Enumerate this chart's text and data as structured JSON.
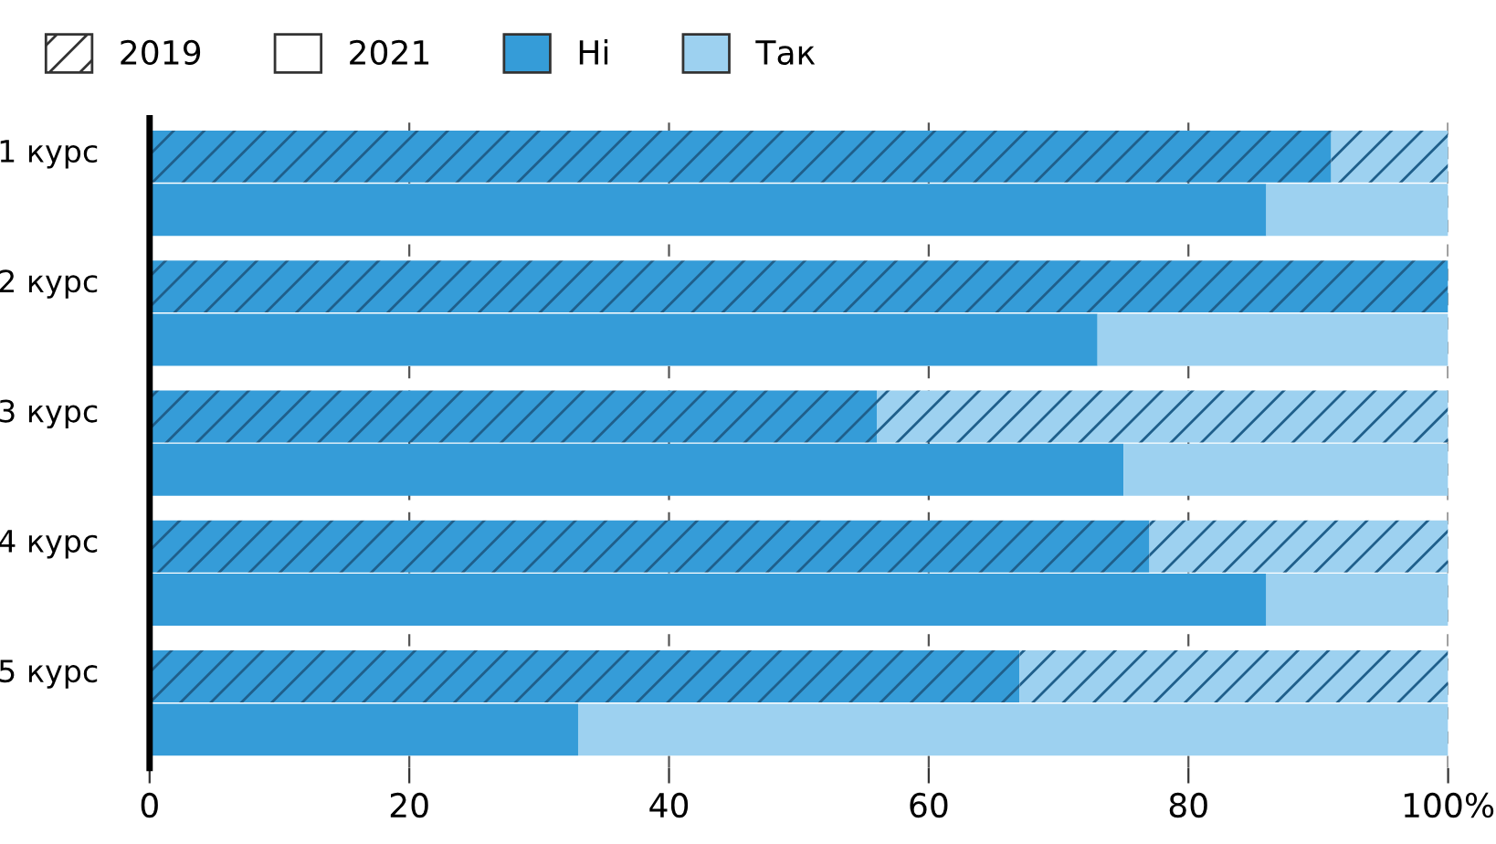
{
  "chart_data": {
    "type": "bar",
    "orientation": "horizontal",
    "stacked": true,
    "categories": [
      "1 курс",
      null,
      "2 курс",
      null,
      "3 курс",
      null,
      "4 курс",
      null,
      "5 курс",
      null
    ],
    "series": [
      {
        "name": "Ні",
        "color": "#359cd8",
        "values": [
          91,
          86,
          100,
          73,
          56,
          75,
          77,
          86,
          67,
          33
        ]
      },
      {
        "name": "Так",
        "color": "#9dd1f0",
        "values": [
          9,
          14,
          0,
          27,
          44,
          25,
          23,
          14,
          33,
          67
        ]
      }
    ],
    "annotations": [
      "2019",
      "2021"
    ],
    "xlim": [
      0,
      100
    ],
    "xticks": [
      0,
      20,
      40,
      60,
      80,
      {
        "value": 100,
        "label": "100%"
      }
    ],
    "grid": "x",
    "line_style": "dashed",
    "legend": "top left"
  }
}
